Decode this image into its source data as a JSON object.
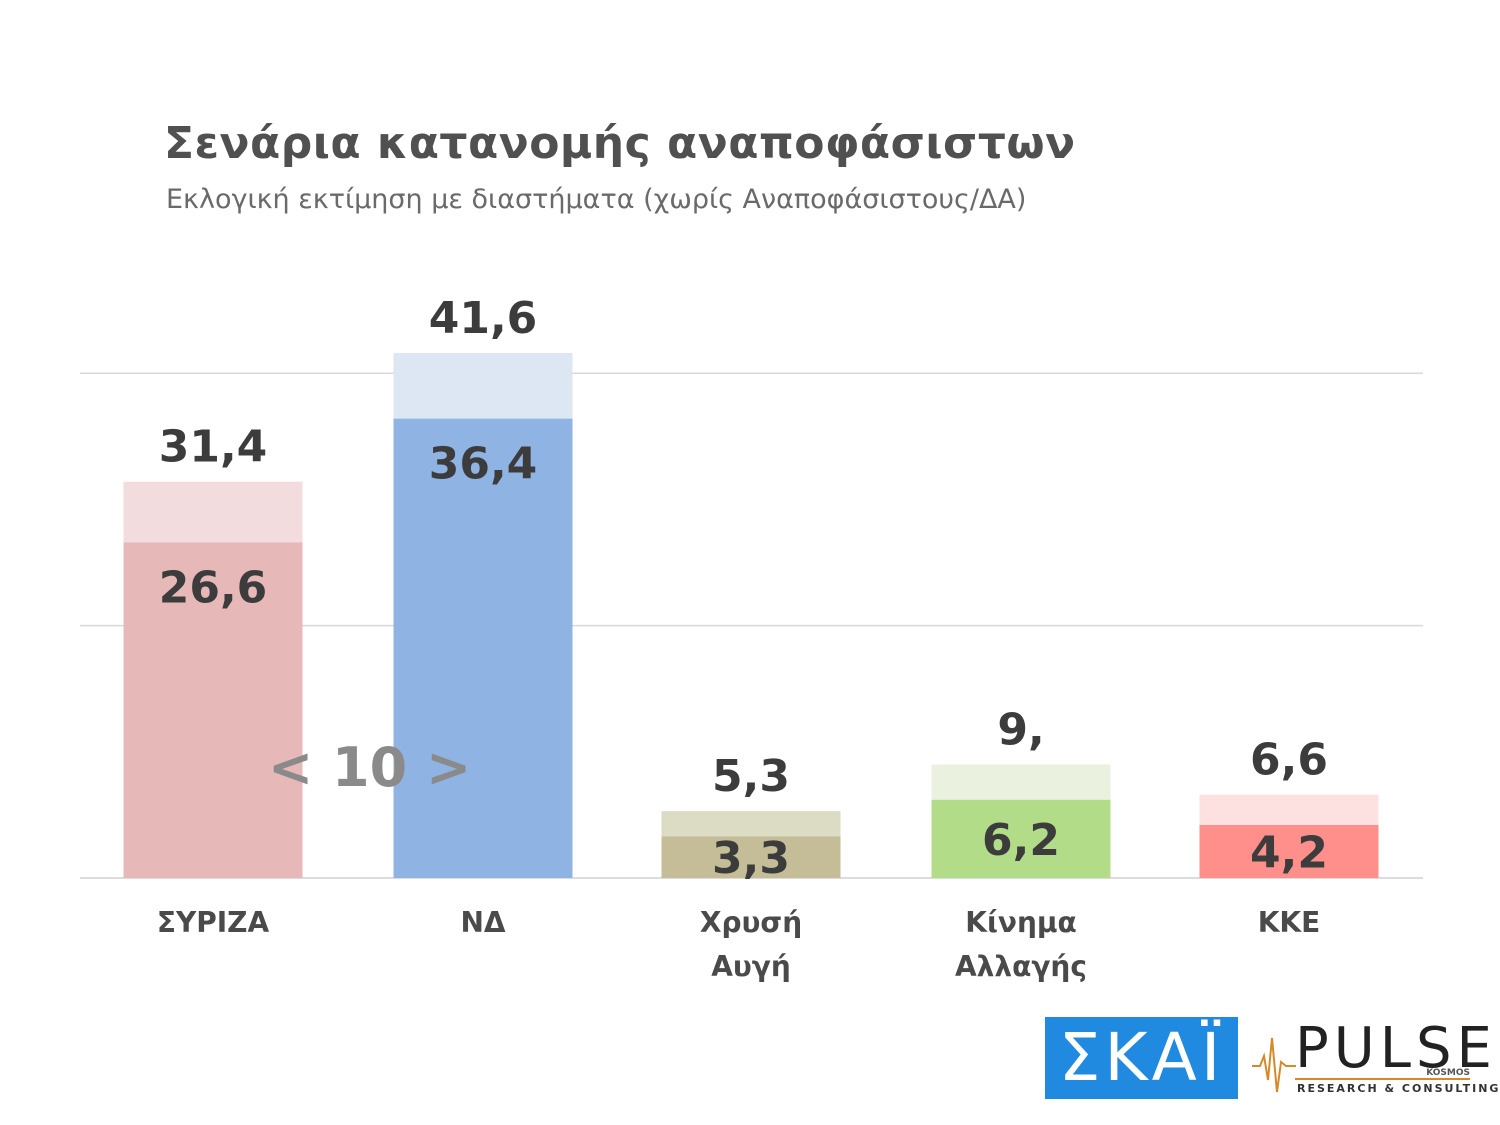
{
  "chart_data": {
    "type": "bar",
    "title": "Σενάρια κατανομής αναποφάσιστων",
    "subtitle": "Εκλογική εκτίμηση με διαστήματα (χωρίς Αναποφάσιστους/ΔΑ)",
    "categories": [
      {
        "label_lines": [
          "ΣΥΡΙΖΑ"
        ]
      },
      {
        "label_lines": [
          "ΝΔ"
        ]
      },
      {
        "label_lines": [
          "Χρυσή",
          "Αυγή"
        ]
      },
      {
        "label_lines": [
          "Κίνημα",
          "Αλλαγής"
        ]
      },
      {
        "label_lines": [
          "ΚΚΕ"
        ]
      }
    ],
    "series": [
      {
        "values": [
          26.6,
          36.4,
          3.3,
          6.2,
          4.2
        ],
        "labels": [
          "26,6",
          "36,4",
          "3,3",
          "6,2",
          "4,2"
        ]
      },
      {
        "values": [
          31.4,
          41.6,
          5.3,
          9,
          6.6
        ],
        "labels": [
          "31,4",
          "41,6",
          "5,3",
          "9,",
          "6,6"
        ]
      }
    ],
    "colors_low": [
      "#e6b8b8",
      "#8fb4e3",
      "#c4bd97",
      "#b2dc87",
      "#ff8f8a"
    ],
    "colors_high": [
      "#f2dcdd",
      "#dde6f3",
      "#dcdbc4",
      "#ebf1df",
      "#fde0e0"
    ],
    "ylim": [
      0,
      41.6
    ],
    "gridlines": [
      20,
      40
    ],
    "legend": "none"
  },
  "page_nav": "< 10 >",
  "logos": {
    "skai": "ΣΚΑΪ",
    "pulse": "PULSE",
    "pulse_sub": "KOSMOS",
    "pulse_tag": "RESEARCH & CONSULTING"
  }
}
